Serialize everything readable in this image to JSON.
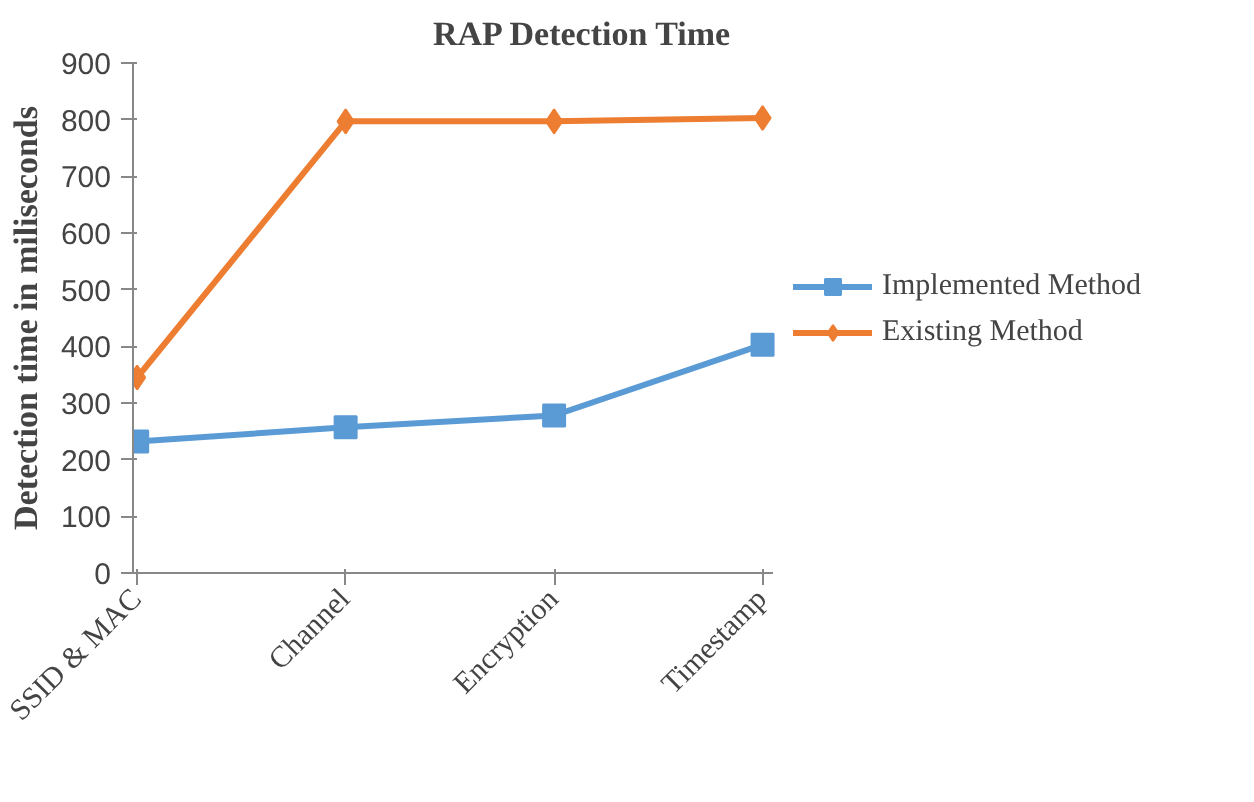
{
  "chart_data": {
    "type": "line",
    "title": "RAP Detection Time",
    "ylabel": "Detection time in miliseconds",
    "categories": [
      "SSID & MAC",
      "Channel",
      "Encryption",
      "Timestamp"
    ],
    "series": [
      {
        "name": "Implemented Method",
        "color": "#5b9bd5",
        "marker": "square",
        "values": [
          232,
          257,
          278,
          403
        ]
      },
      {
        "name": "Existing Method",
        "color": "#ed7d31",
        "marker": "diamond",
        "values": [
          345,
          797,
          797,
          803
        ]
      }
    ],
    "ylim": [
      0,
      900
    ],
    "yticks": [
      0,
      100,
      200,
      300,
      400,
      500,
      600,
      700,
      800,
      900
    ],
    "grid": false,
    "legend": "right"
  }
}
